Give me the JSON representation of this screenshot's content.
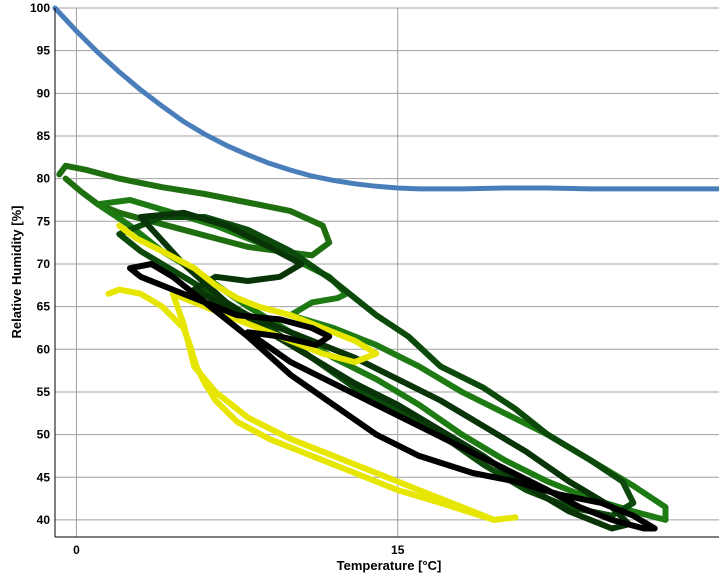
{
  "chart_data": {
    "type": "line",
    "title": "",
    "xlabel": "Temperature [°C]",
    "ylabel": "Relative Humidity [%]",
    "xlim": [
      -1,
      30
    ],
    "ylim": [
      38,
      100
    ],
    "x_ticks": [
      0,
      15
    ],
    "y_ticks": [
      40,
      45,
      50,
      55,
      60,
      65,
      70,
      75,
      80,
      85,
      90,
      95,
      100
    ],
    "grid": true,
    "legend": "none",
    "series": [
      {
        "color": "#4a7ebb",
        "x": [
          -1,
          0,
          1,
          2,
          3,
          4,
          5,
          6,
          7,
          8,
          9,
          10,
          11,
          12,
          13,
          14,
          15,
          16,
          17,
          18,
          20,
          22,
          24,
          26,
          28,
          30
        ],
        "y": [
          100,
          97.3,
          94.8,
          92.5,
          90.4,
          88.5,
          86.7,
          85.2,
          83.9,
          82.8,
          81.8,
          81,
          80.3,
          79.8,
          79.4,
          79.1,
          78.9,
          78.8,
          78.8,
          78.8,
          78.9,
          78.9,
          78.8,
          78.8,
          78.8,
          78.8
        ]
      },
      {
        "color": "#1f6e0f",
        "x": [
          -0.8,
          -0.5,
          0.5,
          2,
          4,
          6,
          8,
          10,
          11.5,
          11.8,
          11,
          9.5,
          8,
          6.5,
          5,
          3.5,
          2,
          1,
          0.2,
          -0.5
        ],
        "y": [
          80.5,
          81.5,
          81,
          80,
          79,
          78.2,
          77.2,
          76.2,
          74.5,
          72.5,
          71,
          71.5,
          72,
          73,
          74,
          75,
          76,
          77,
          78.5,
          80
        ]
      },
      {
        "color": "#1e7b14",
        "x": [
          1,
          2.5,
          4.5,
          6.5,
          8.5,
          9.8,
          11.8,
          12.6,
          12.2,
          11,
          10,
          12,
          14,
          16,
          18,
          20,
          22,
          24,
          26,
          27.5,
          27.5,
          26,
          24,
          22,
          20,
          18,
          16,
          14,
          12,
          10,
          8,
          6,
          4,
          2.5,
          1
        ],
        "y": [
          77,
          77.5,
          76,
          74.5,
          72.5,
          71,
          68.5,
          66.5,
          66,
          65.5,
          64,
          62.5,
          60.5,
          58,
          55,
          52.5,
          50,
          47,
          44,
          41.5,
          40,
          41,
          42.5,
          44.5,
          47,
          50,
          53.5,
          56.5,
          59,
          62,
          65,
          68.5,
          71.5,
          74.5,
          77
        ]
      },
      {
        "color": "#0b4a0b",
        "x": [
          2,
          4,
          6,
          8,
          10,
          12,
          14,
          15.5,
          17,
          19,
          20.5,
          22,
          24,
          25.5,
          26,
          25,
          23,
          21,
          19,
          17,
          15,
          13,
          11,
          9,
          7,
          5,
          3,
          2
        ],
        "y": [
          73.5,
          75.5,
          75.5,
          74,
          71.5,
          68,
          64,
          61.5,
          58,
          55.5,
          53,
          50,
          47,
          44.5,
          42,
          40.5,
          41.5,
          43.5,
          46.5,
          50,
          53,
          55.5,
          59,
          62.5,
          65.5,
          68.5,
          71.5,
          73.5
        ]
      },
      {
        "color": "#083408",
        "x": [
          3,
          5,
          7,
          9,
          10.5,
          9.5,
          8,
          6.5,
          5.5,
          7,
          9,
          11,
          13,
          15,
          17,
          19,
          21,
          23,
          25,
          25.8,
          25,
          23,
          21,
          19,
          17,
          15,
          13,
          11,
          9,
          7,
          5,
          3
        ],
        "y": [
          75.5,
          76,
          74.5,
          72,
          70,
          68.5,
          68,
          68.5,
          67,
          65,
          63,
          61,
          59,
          56.5,
          54,
          51,
          48,
          44.5,
          41.5,
          39.5,
          39,
          41,
          44,
          47.5,
          50.5,
          53.5,
          56,
          59,
          62,
          65.5,
          70,
          75.5
        ]
      },
      {
        "color": "#e6e600",
        "x": [
          2.5,
          2,
          2.8,
          4,
          5.5,
          6.5,
          7.5,
          8.5,
          10,
          11.5,
          13,
          14,
          13,
          11.5,
          10,
          8.5,
          7,
          5.5,
          4.5,
          5,
          5.5,
          6.5,
          8,
          10,
          12,
          14,
          16,
          18,
          19.5
        ],
        "y": [
          73.5,
          74.5,
          73,
          71.5,
          69.5,
          67.5,
          66,
          65,
          64,
          62.5,
          61,
          59.5,
          58.5,
          59.5,
          61,
          62.5,
          64,
          65.5,
          66.5,
          63,
          58,
          55,
          52,
          49.5,
          47.5,
          45.5,
          43.5,
          41.5,
          40
        ]
      },
      {
        "color": "#e6e600",
        "x": [
          1.5,
          2,
          3,
          4,
          5,
          5.3,
          5.6,
          6,
          6.5,
          7.5,
          9,
          11,
          13,
          15,
          17,
          19.5,
          20.5
        ],
        "y": [
          66.5,
          67,
          66.5,
          65,
          62.5,
          60.5,
          58,
          56,
          54,
          51.5,
          49.5,
          47.5,
          45.5,
          43.5,
          42,
          40,
          40.3
        ]
      },
      {
        "color": "#000000",
        "x": [
          3.5,
          2.5,
          3,
          4.5,
          6,
          7.5,
          9.5,
          11,
          11.8,
          11.2,
          9.5,
          8,
          10,
          12,
          14,
          16,
          18,
          20,
          22,
          23.5,
          25,
          26.5,
          27,
          26,
          24.5,
          22.5,
          20.5,
          18.5,
          16,
          14,
          12,
          10,
          8,
          6,
          4.5,
          3.5
        ],
        "y": [
          70,
          69.5,
          68.5,
          67,
          65.5,
          64,
          63.5,
          62.5,
          61.5,
          60.5,
          61.5,
          62,
          58.5,
          56,
          53.5,
          51,
          48.5,
          46,
          43.5,
          41.5,
          40,
          39,
          39,
          40.5,
          42,
          43,
          44.5,
          45.5,
          47.5,
          50,
          53.5,
          57,
          61.5,
          65.5,
          68.5,
          70
        ]
      }
    ]
  }
}
